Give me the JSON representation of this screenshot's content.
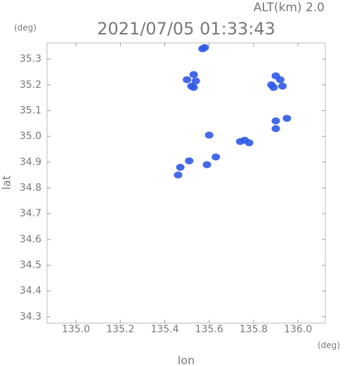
{
  "chart_data": {
    "type": "scatter",
    "title": "2021/07/05 01:33:43",
    "subtitle": "ALT(km) 2.0",
    "y_unit": "(deg)",
    "x_unit": "(deg)",
    "x_label": "lon",
    "y_label": "lat",
    "color": "#2f5ae6",
    "x": [
      135.57,
      135.58,
      135.53,
      135.54,
      135.5,
      135.52,
      135.53,
      135.9,
      135.92,
      135.88,
      135.93,
      135.89,
      135.9,
      135.95,
      135.9,
      135.74,
      135.76,
      135.78,
      135.63,
      135.59,
      135.51,
      135.47,
      135.46,
      135.6
    ],
    "y": [
      35.34,
      35.345,
      35.24,
      35.215,
      35.22,
      35.195,
      35.19,
      35.235,
      35.22,
      35.2,
      35.195,
      35.19,
      35.06,
      35.07,
      35.03,
      34.98,
      34.985,
      34.975,
      34.92,
      34.89,
      34.905,
      34.88,
      34.85,
      35.005
    ],
    "xlim": [
      134.87,
      136.123
    ],
    "ylim": [
      34.275,
      35.363
    ],
    "xticks": [
      {
        "value": 135,
        "label": "135.0"
      },
      135.2,
      135.4,
      135.6,
      135.8,
      {
        "value": 136,
        "label": "136.0"
      }
    ],
    "yticks": [
      34.3,
      34.4,
      34.5,
      34.6,
      34.7,
      34.8,
      34.9,
      {
        "value": 35,
        "label": "35.0"
      },
      35.1,
      35.2,
      35.3
    ]
  }
}
